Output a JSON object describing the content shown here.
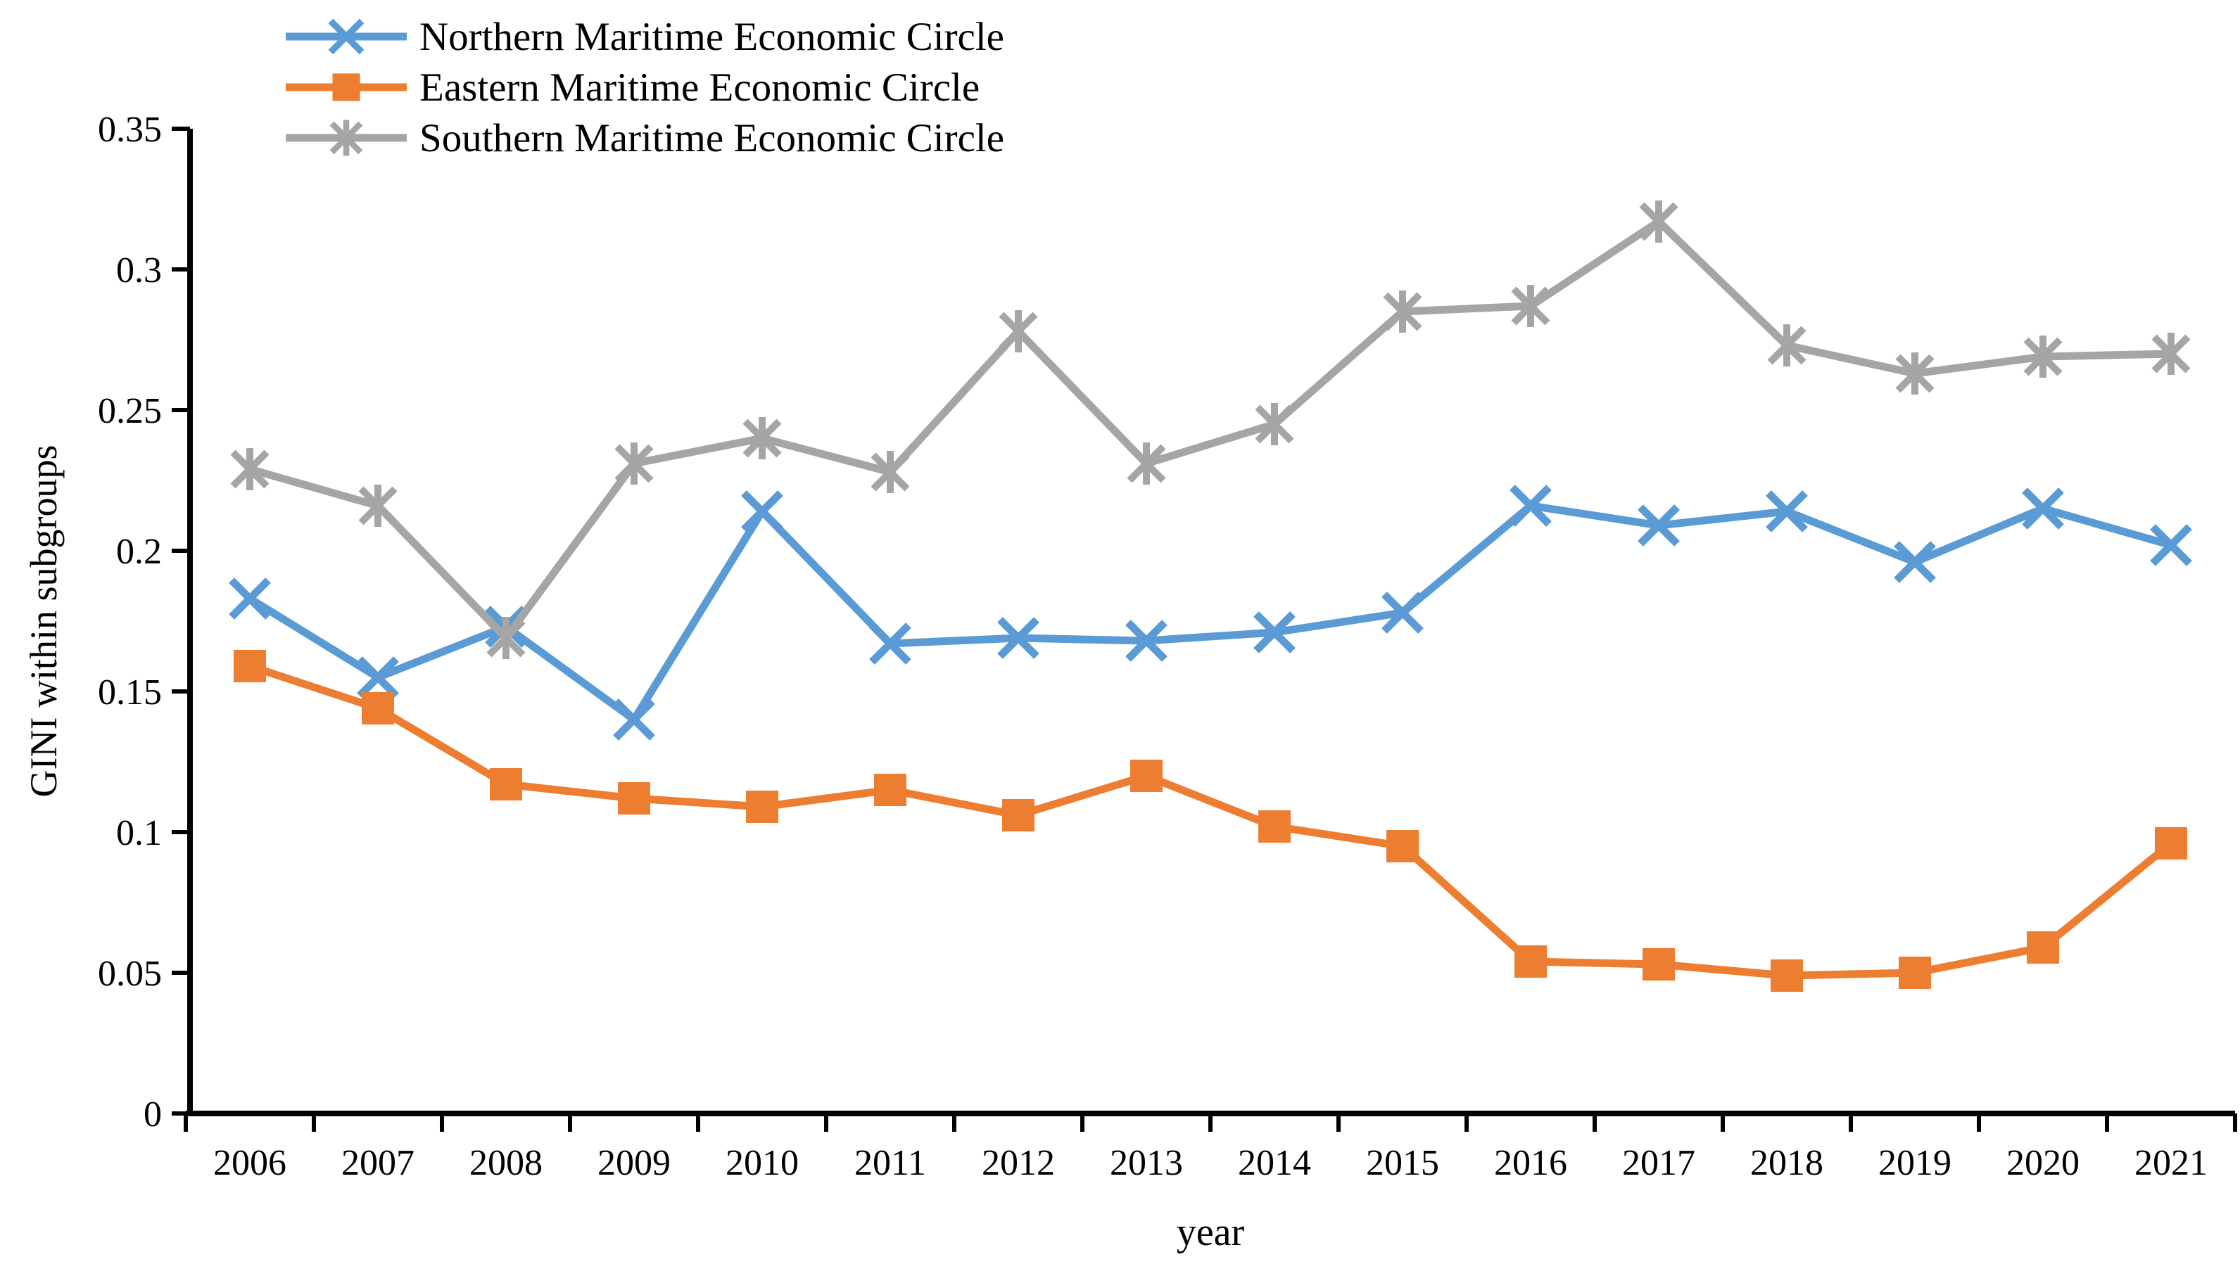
{
  "chart_data": {
    "type": "line",
    "title": "",
    "xlabel": "year",
    "ylabel": "GINI within subgroups",
    "x": [
      2006,
      2007,
      2008,
      2009,
      2010,
      2011,
      2012,
      2013,
      2014,
      2015,
      2016,
      2017,
      2018,
      2019,
      2020,
      2021
    ],
    "ylim": [
      0,
      0.35
    ],
    "yticks": [
      0,
      0.05,
      0.1,
      0.15,
      0.2,
      0.25,
      0.3,
      0.35
    ],
    "ytick_labels": [
      "0",
      "0.05",
      "0.1",
      "0.15",
      "0.2",
      "0.25",
      "0.3",
      "0.35"
    ],
    "grid": false,
    "legend_position": "top-left",
    "background_color": "#ffffff",
    "axis_color": "#000000",
    "series": [
      {
        "name": "Northern Maritime Economic Circle",
        "color": "#5B9BD5",
        "marker": "x",
        "values": [
          0.183,
          0.155,
          0.173,
          0.14,
          0.214,
          0.167,
          0.169,
          0.168,
          0.171,
          0.178,
          0.216,
          0.209,
          0.214,
          0.196,
          0.215,
          0.202
        ]
      },
      {
        "name": "Eastern Maritime Economic Circle",
        "color": "#ED7D31",
        "marker": "square",
        "values": [
          0.159,
          0.144,
          0.117,
          0.112,
          0.109,
          0.115,
          0.106,
          0.12,
          0.102,
          0.095,
          0.054,
          0.053,
          0.049,
          0.05,
          0.059,
          0.096
        ]
      },
      {
        "name": "Southern Maritime Economic Circle",
        "color": "#A5A5A5",
        "marker": "star6",
        "values": [
          0.229,
          0.216,
          0.169,
          0.231,
          0.24,
          0.228,
          0.278,
          0.231,
          0.245,
          0.285,
          0.287,
          0.317,
          0.273,
          0.263,
          0.269,
          0.27
        ]
      }
    ]
  }
}
